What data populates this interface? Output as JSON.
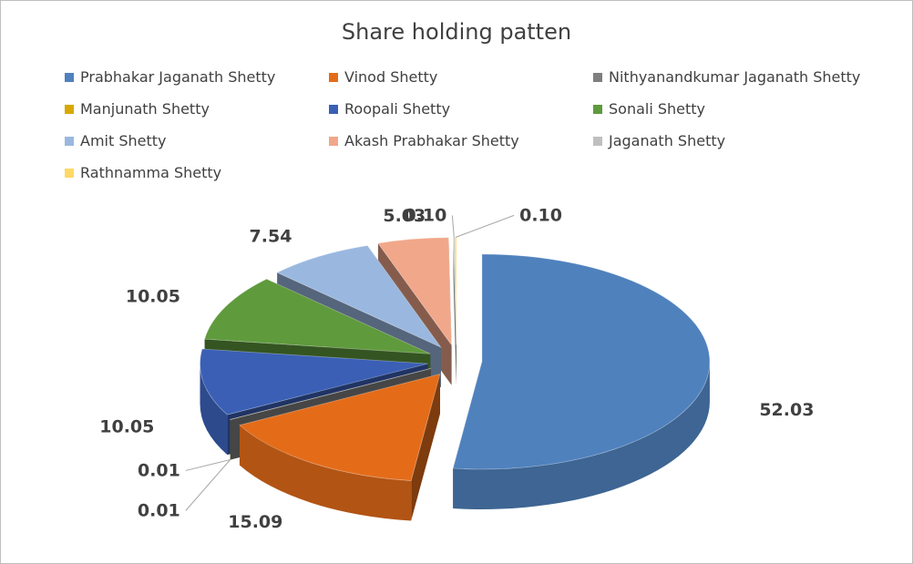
{
  "chart_data": {
    "type": "pie",
    "title": "Share holding patten",
    "legend_position": "top",
    "exploded": true,
    "three_d": true,
    "series": [
      {
        "name": "Prabhakar Jaganath Shetty",
        "value": 52.03,
        "label": "52.03",
        "color": "#4f81bd"
      },
      {
        "name": "Vinod Shetty",
        "value": 15.09,
        "label": "15.09",
        "color": "#e46c19"
      },
      {
        "name": "Nithyanandkumar Jaganath Shetty",
        "value": 0.01,
        "label": "0.01",
        "color": "#7f7f7f"
      },
      {
        "name": "Manjunath Shetty",
        "value": 0.01,
        "label": "0.01",
        "color": "#d8a800"
      },
      {
        "name": "Roopali Shetty",
        "value": 10.05,
        "label": "10.05",
        "color": "#3a5fb5"
      },
      {
        "name": "Sonali Shetty",
        "value": 10.05,
        "label": "10.05",
        "color": "#5f9a3c"
      },
      {
        "name": "Amit Shetty",
        "value": 7.54,
        "label": "7.54",
        "color": "#9ab8df"
      },
      {
        "name": "Akash Prabhakar Shetty",
        "value": 5.03,
        "label": "5.03",
        "color": "#f1a78a"
      },
      {
        "name": "Jaganath Shetty",
        "value": 0.1,
        "label": "0.10",
        "color": "#bfbfbf"
      },
      {
        "name": "Rathnamma Shetty",
        "value": 0.1,
        "label": "0.10",
        "color": "#ffd966"
      }
    ]
  }
}
